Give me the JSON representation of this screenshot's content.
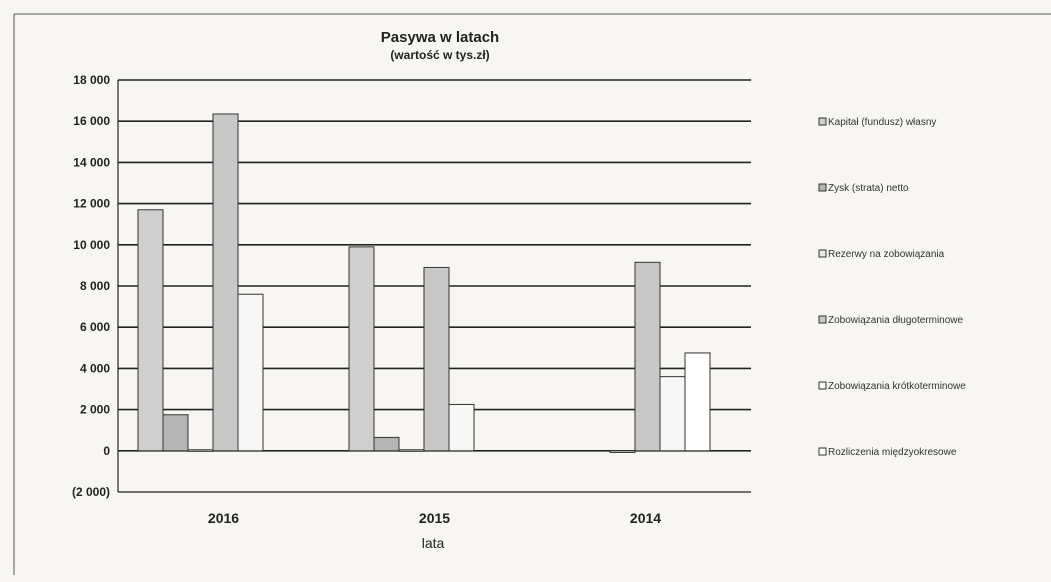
{
  "chart_data": {
    "type": "bar",
    "title": "Pasywa w latach",
    "subtitle": "(wartość w tys.zł)",
    "xlabel": "lata",
    "ylabel": "",
    "categories": [
      "2016",
      "2015",
      "2014"
    ],
    "ylim": [
      -2000,
      18000
    ],
    "yticks": [
      -2000,
      0,
      2000,
      4000,
      6000,
      8000,
      10000,
      12000,
      14000,
      16000,
      18000
    ],
    "ytick_labels": [
      "(2 000)",
      "0",
      "2 000",
      "4 000",
      "6 000",
      "8 000",
      "10 000",
      "12 000",
      "14 000",
      "16 000",
      "18 000"
    ],
    "grid": true,
    "legend_position": "right",
    "series": [
      {
        "name": "Kapitał (fundusz) własny",
        "color": "#cfcfcf",
        "values": [
          11700,
          9900,
          0
        ]
      },
      {
        "name": "Zysk (strata) netto",
        "color": "#b5b5b5",
        "values": [
          1750,
          650,
          0
        ]
      },
      {
        "name": "Rezerwy na zobowiązania",
        "color": "#e6e6e6",
        "values": [
          50,
          50,
          -80
        ]
      },
      {
        "name": "Zobowiązania długoterminowe",
        "color": "#c8c8c8",
        "values": [
          16350,
          8900,
          9150
        ]
      },
      {
        "name": "Zobowiązania krótkoterminowe",
        "color": "#f7f7f7",
        "values": [
          7600,
          2250,
          3600
        ]
      },
      {
        "name": "Rozliczenia międzyokresowe",
        "color": "#ffffff",
        "values": [
          0,
          0,
          4750
        ]
      }
    ]
  }
}
